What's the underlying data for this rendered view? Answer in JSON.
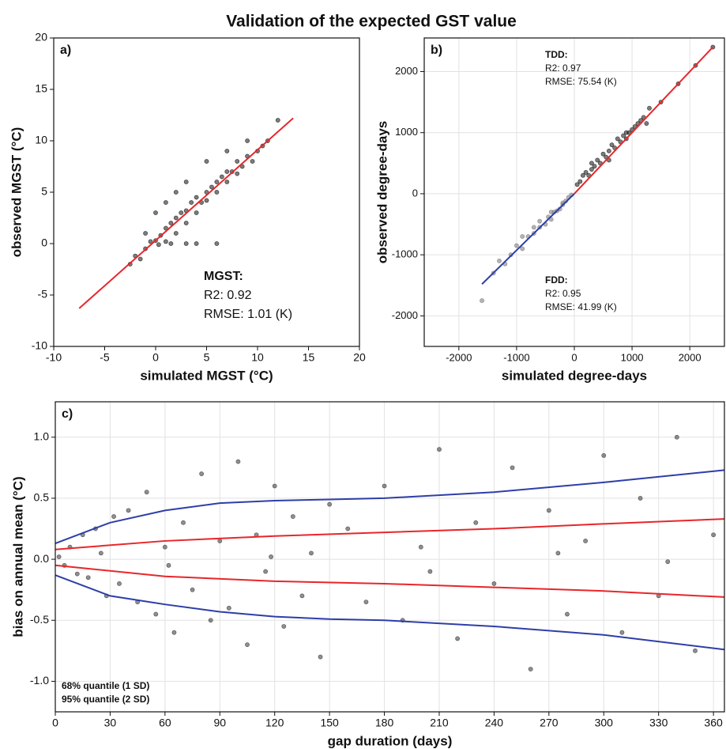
{
  "title": "Validation of the expected GST value",
  "chart_data": [
    {
      "type": "scatter",
      "panel_label": "a)",
      "xlabel": "simulated MGST (°C)",
      "ylabel": "observed MGST (°C)",
      "xlim": [
        -10,
        20
      ],
      "ylim": [
        -10,
        20
      ],
      "xticks": [
        -10,
        -5,
        0,
        5,
        10,
        15,
        20
      ],
      "yticks": [
        -10,
        -5,
        0,
        5,
        10,
        15,
        20
      ],
      "grid": false,
      "points": [
        {
          "color": "#111111",
          "x": [
            -2.5,
            -2,
            -1.5,
            -1,
            -0.5,
            0,
            0.3,
            0.5,
            1,
            1,
            1.5,
            2,
            2,
            2.5,
            3,
            3,
            3.5,
            4,
            4,
            4.5,
            5,
            5,
            5.5,
            6,
            6,
            6.5,
            7,
            7,
            7.5,
            8,
            8,
            8.5,
            9,
            9.5,
            10,
            10.5,
            11,
            12,
            -1,
            0,
            1,
            2,
            3,
            5,
            7,
            9,
            4,
            6,
            1.5,
            3
          ],
          "y": [
            -2,
            -1.2,
            -1.5,
            -0.5,
            0.2,
            0.3,
            -0.1,
            0.8,
            1.5,
            0.2,
            2,
            2.5,
            1,
            3,
            3.2,
            2,
            4,
            4.5,
            3,
            4,
            5,
            4.2,
            5.5,
            6,
            5,
            6.5,
            7,
            6,
            7,
            8,
            6.8,
            7.5,
            8.5,
            8,
            9,
            9.5,
            10,
            12,
            1,
            3,
            4,
            5,
            6,
            8,
            9,
            10,
            0,
            0,
            0,
            0
          ]
        }
      ],
      "fits": [
        {
          "color": "#e8262a",
          "x": [
            -7.5,
            13.5
          ],
          "y": [
            -6.3,
            12.2
          ]
        }
      ],
      "annotations": [
        {
          "color": "#111111",
          "lines": [
            "MGST:",
            "R2: 0.92",
            "RMSE: 1.01 (K)"
          ]
        }
      ]
    },
    {
      "type": "scatter",
      "panel_label": "b)",
      "xlabel": "simulated degree-days",
      "ylabel": "observed degree-days",
      "xlim": [
        -2600,
        2600
      ],
      "ylim": [
        -2500,
        2550
      ],
      "xticks": [
        -2000,
        -1000,
        0,
        1000,
        2000
      ],
      "yticks": [
        -2000,
        -1000,
        0,
        1000,
        2000
      ],
      "grid": true,
      "points": [
        {
          "color": "#777777",
          "x": [
            -1600,
            -1400,
            -1200,
            -1100,
            -1000,
            -900,
            -800,
            -700,
            -600,
            -500,
            -450,
            -400,
            -350,
            -300,
            -250,
            -200,
            -150,
            -100,
            -50,
            -900,
            -600,
            -400,
            -1300,
            -700,
            -200
          ],
          "y": [
            -1750,
            -1300,
            -1150,
            -1000,
            -850,
            -900,
            -700,
            -650,
            -550,
            -500,
            -380,
            -420,
            -300,
            -280,
            -250,
            -180,
            -120,
            -60,
            -20,
            -700,
            -450,
            -300,
            -1100,
            -550,
            -150
          ]
        },
        {
          "color": "#111111",
          "x": [
            50,
            100,
            150,
            200,
            250,
            300,
            350,
            400,
            450,
            500,
            550,
            600,
            650,
            700,
            750,
            800,
            850,
            900,
            950,
            1000,
            1050,
            1100,
            1150,
            1200,
            1250,
            1300,
            1500,
            1800,
            2100,
            2400,
            300,
            600,
            900
          ],
          "y": [
            150,
            200,
            300,
            350,
            300,
            500,
            450,
            550,
            500,
            650,
            600,
            700,
            800,
            750,
            900,
            850,
            950,
            900,
            1000,
            1050,
            1100,
            1150,
            1200,
            1250,
            1150,
            1400,
            1500,
            1800,
            2100,
            2400,
            400,
            550,
            1000
          ]
        }
      ],
      "fits": [
        {
          "color": "#e8262a",
          "x": [
            0,
            2400
          ],
          "y": [
            0,
            2400
          ]
        },
        {
          "color": "#2e3ea8",
          "x": [
            -1600,
            0
          ],
          "y": [
            -1480,
            0
          ]
        }
      ],
      "annotations": [
        {
          "color": "#e8262a",
          "lines": [
            "TDD:",
            "R2: 0.97",
            "RMSE: 75.54 (K)"
          ]
        },
        {
          "color": "#2e3ea8",
          "lines": [
            "FDD:",
            "R2: 0.95",
            "RMSE: 41.99 (K)"
          ]
        }
      ]
    },
    {
      "type": "scatter",
      "panel_label": "c)",
      "xlabel": "gap duration (days)",
      "ylabel": "bias on annual mean (°C)",
      "xlim": [
        0,
        366
      ],
      "ylim": [
        -1.25,
        1.29
      ],
      "xticks": [
        0,
        30,
        60,
        90,
        120,
        150,
        180,
        210,
        240,
        270,
        300,
        330,
        360
      ],
      "yticks": [
        {
          "value": -1,
          "label": "-1.0"
        },
        {
          "value": -0.5,
          "label": "-0.5"
        },
        {
          "value": 0,
          "label": "0.0"
        },
        {
          "value": 0.5,
          "label": "0.5"
        },
        {
          "value": 1,
          "label": "1.0"
        }
      ],
      "grid": true,
      "points": [
        {
          "color": "#333333",
          "x": [
            2,
            5,
            8,
            12,
            15,
            18,
            22,
            25,
            28,
            32,
            35,
            40,
            45,
            50,
            55,
            60,
            65,
            70,
            75,
            80,
            85,
            90,
            95,
            100,
            105,
            110,
            115,
            120,
            125,
            130,
            135,
            140,
            145,
            150,
            160,
            170,
            180,
            190,
            200,
            210,
            220,
            230,
            240,
            250,
            260,
            270,
            280,
            290,
            300,
            310,
            320,
            330,
            340,
            350,
            360,
            62,
            118,
            205,
            275,
            335
          ],
          "y": [
            0.02,
            -0.05,
            0.1,
            -0.12,
            0.2,
            -0.15,
            0.25,
            0.05,
            -0.3,
            0.35,
            -0.2,
            0.4,
            -0.35,
            0.55,
            -0.45,
            0.1,
            -0.6,
            0.3,
            -0.25,
            0.7,
            -0.5,
            0.15,
            -0.4,
            0.8,
            -0.7,
            0.2,
            -0.1,
            0.6,
            -0.55,
            0.35,
            -0.3,
            0.05,
            -0.8,
            0.45,
            0.25,
            -0.35,
            0.6,
            -0.5,
            0.1,
            0.9,
            -0.65,
            0.3,
            -0.2,
            0.75,
            -0.9,
            0.4,
            -0.45,
            0.15,
            0.85,
            -0.6,
            0.5,
            -0.3,
            1.0,
            -0.75,
            0.2,
            -0.05,
            0.02,
            -0.1,
            0.05,
            -0.02
          ]
        }
      ],
      "series": [
        {
          "name": "68% quantile (1 SD)",
          "color": "#e8262a",
          "curves": [
            {
              "x": [
                0,
                60,
                120,
                180,
                240,
                300,
                366
              ],
              "y": [
                0.08,
                0.15,
                0.19,
                0.22,
                0.25,
                0.29,
                0.33
              ]
            },
            {
              "x": [
                0,
                60,
                120,
                180,
                240,
                300,
                366
              ],
              "y": [
                -0.05,
                -0.14,
                -0.18,
                -0.2,
                -0.23,
                -0.26,
                -0.31
              ]
            }
          ]
        },
        {
          "name": "95% quantile (2 SD)",
          "color": "#2e3ea8",
          "curves": [
            {
              "x": [
                0,
                30,
                60,
                90,
                120,
                150,
                180,
                240,
                300,
                366
              ],
              "y": [
                0.13,
                0.3,
                0.4,
                0.46,
                0.48,
                0.49,
                0.5,
                0.55,
                0.63,
                0.73
              ]
            },
            {
              "x": [
                0,
                30,
                60,
                90,
                120,
                150,
                180,
                240,
                300,
                366
              ],
              "y": [
                -0.13,
                -0.3,
                -0.37,
                -0.43,
                -0.47,
                -0.49,
                -0.5,
                -0.55,
                -0.62,
                -0.74
              ]
            }
          ]
        }
      ]
    }
  ]
}
